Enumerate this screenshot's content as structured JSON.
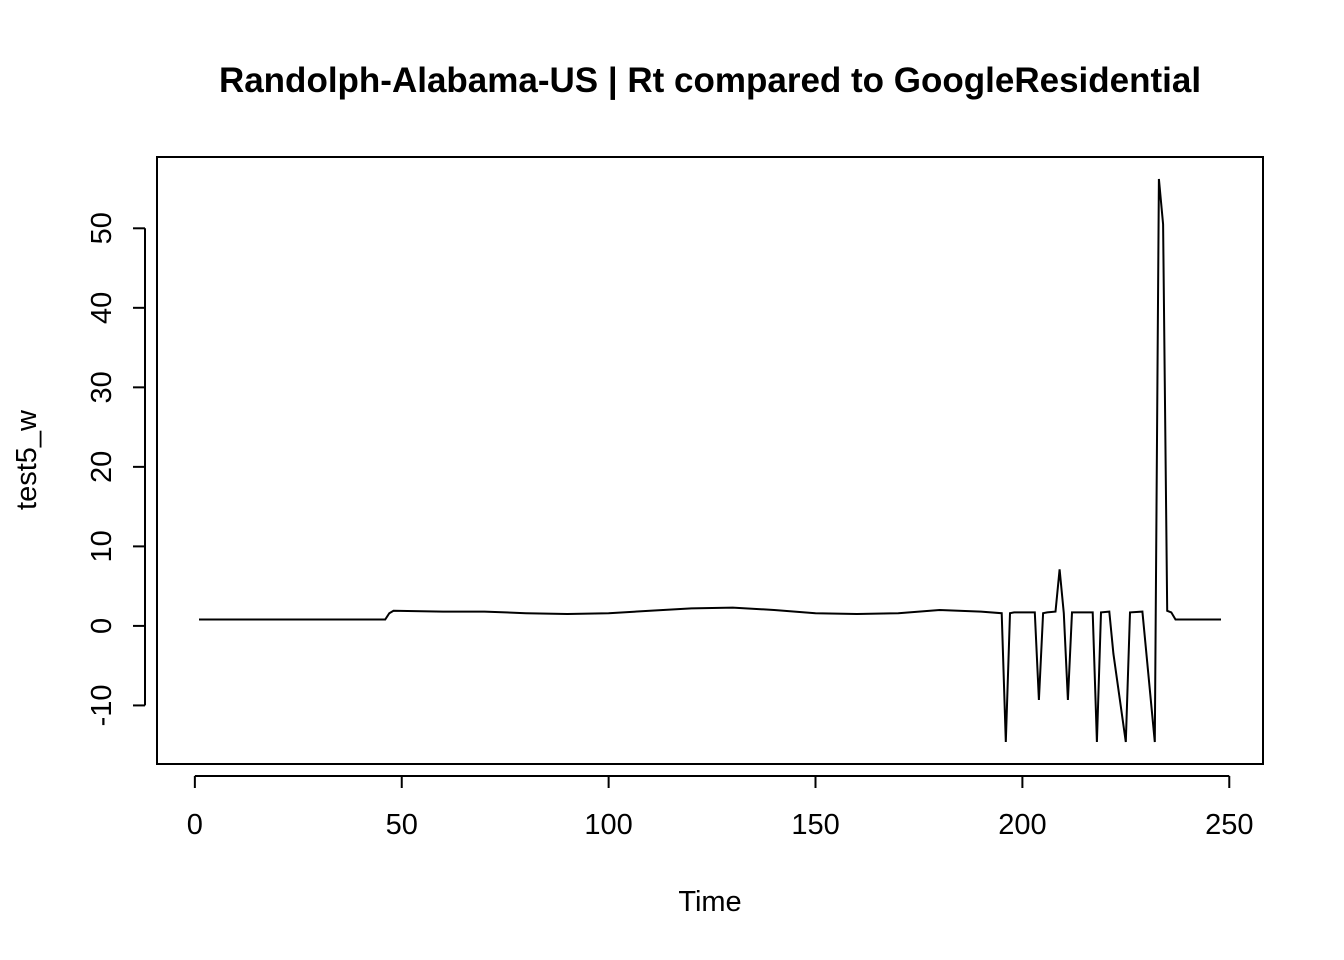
{
  "chart_data": {
    "type": "line",
    "title": "Randolph-Alabama-US | Rt compared to GoogleResidential",
    "xlabel": "Time",
    "ylabel": "test5_w",
    "xlim": [
      1,
      248
    ],
    "ylim": [
      -14.6,
      56.2
    ],
    "xticks": [
      0,
      50,
      100,
      150,
      200,
      250
    ],
    "yticks": [
      -10,
      0,
      10,
      20,
      30,
      40,
      50
    ],
    "grid": false,
    "legend": "none",
    "line_color": "#000000",
    "series": [
      {
        "x": [
          1,
          46,
          47,
          48,
          60,
          70,
          80,
          90,
          100,
          110,
          120,
          130,
          140,
          150,
          160,
          170,
          180,
          190,
          195,
          196,
          197,
          198,
          199,
          203,
          204,
          205,
          206,
          208,
          209,
          210,
          211,
          212,
          217,
          218,
          219,
          221,
          222,
          225,
          226,
          229,
          232,
          233,
          234,
          235,
          236,
          237,
          248
        ],
        "y": [
          0.8,
          0.8,
          1.6,
          1.9,
          1.8,
          1.8,
          1.6,
          1.5,
          1.6,
          1.9,
          2.2,
          2.3,
          2.0,
          1.6,
          1.5,
          1.6,
          2.0,
          1.8,
          1.6,
          -14.6,
          1.6,
          1.7,
          1.7,
          1.7,
          -9.3,
          1.6,
          1.7,
          1.8,
          7.1,
          1.6,
          -9.3,
          1.7,
          1.7,
          -14.6,
          1.7,
          1.8,
          -3.5,
          -14.6,
          1.7,
          1.8,
          -14.6,
          56.2,
          50.5,
          1.9,
          1.7,
          0.8,
          0.8
        ]
      }
    ]
  }
}
